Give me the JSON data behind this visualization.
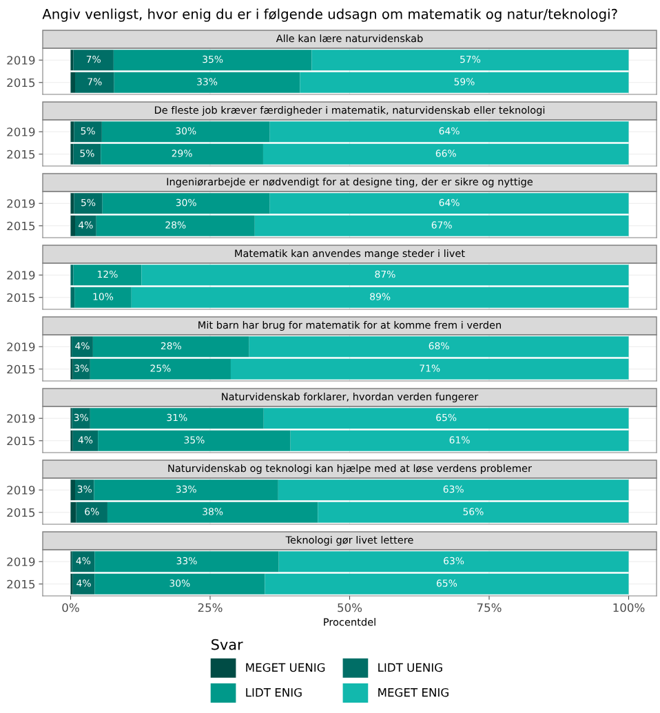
{
  "chart_data": [
    {
      "type": "bar",
      "orientation": "horizontal",
      "stacked": true,
      "title": "Angiv venligst, hvor enig du er i følgende udsagn om matematik og natur/teknologi?",
      "subtitle": "Alle kan lære naturvidenskab",
      "categories": [
        "2019",
        "2015"
      ],
      "xlim": [
        -5,
        105
      ],
      "xticks": [
        {
          "value": 0,
          "label": null
        },
        {
          "value": 25,
          "label": null
        },
        {
          "value": 50,
          "label": null
        },
        {
          "value": 75,
          "label": null
        },
        {
          "value": 100,
          "label": null
        }
      ],
      "grid": true,
      "tick_labels": "y",
      "series": [
        {
          "color": "#004c45",
          "values": [
            0.5,
            0.8
          ],
          "value_labels": [
            null,
            null
          ]
        },
        {
          "color": "#006e66",
          "values": [
            7.2,
            7.0
          ],
          "value_labels": [
            "7%",
            "7%"
          ]
        },
        {
          "color": "#00998a",
          "values": [
            35.5,
            33.3
          ],
          "value_labels": [
            "35%",
            "33%"
          ]
        },
        {
          "color": "#12b8ad",
          "values": [
            56.8,
            58.9
          ],
          "value_labels": [
            "57%",
            "59%"
          ]
        }
      ]
    },
    {
      "type": "bar",
      "orientation": "horizontal",
      "stacked": true,
      "subtitle": "De fleste job kræver færdigheder i matematik, naturvidenskab eller teknologi",
      "categories": [
        "2019",
        "2015"
      ],
      "xlim": [
        -5,
        105
      ],
      "xticks": [
        {
          "value": 0,
          "label": null
        },
        {
          "value": 25,
          "label": null
        },
        {
          "value": 50,
          "label": null
        },
        {
          "value": 75,
          "label": null
        },
        {
          "value": 100,
          "label": null
        }
      ],
      "grid": true,
      "tick_labels": "y",
      "series": [
        {
          "color": "#004c45",
          "values": [
            0.6,
            0.5
          ],
          "value_labels": [
            null,
            null
          ]
        },
        {
          "color": "#006e66",
          "values": [
            5.0,
            4.9
          ],
          "value_labels": [
            "5%",
            "5%"
          ]
        },
        {
          "color": "#00998a",
          "values": [
            30.1,
            29.1
          ],
          "value_labels": [
            "30%",
            "29%"
          ]
        },
        {
          "color": "#12b8ad",
          "values": [
            64.3,
            65.5
          ],
          "value_labels": [
            "64%",
            "66%"
          ]
        }
      ]
    },
    {
      "type": "bar",
      "orientation": "horizontal",
      "stacked": true,
      "subtitle": "Ingeniørarbejde er nødvendigt for at designe ting, der er sikre og nyttige",
      "categories": [
        "2019",
        "2015"
      ],
      "xlim": [
        -5,
        105
      ],
      "xticks": [
        {
          "value": 0,
          "label": null
        },
        {
          "value": 25,
          "label": null
        },
        {
          "value": 50,
          "label": null
        },
        {
          "value": 75,
          "label": null
        },
        {
          "value": 100,
          "label": null
        }
      ],
      "grid": true,
      "tick_labels": "y",
      "series": [
        {
          "color": "#004c45",
          "values": [
            0.6,
            0.8
          ],
          "value_labels": [
            null,
            null
          ]
        },
        {
          "color": "#006e66",
          "values": [
            5.1,
            3.8
          ],
          "value_labels": [
            "5%",
            "4%"
          ]
        },
        {
          "color": "#00998a",
          "values": [
            30.0,
            28.4
          ],
          "value_labels": [
            "30%",
            "28%"
          ]
        },
        {
          "color": "#12b8ad",
          "values": [
            64.3,
            67.0
          ],
          "value_labels": [
            "64%",
            "67%"
          ]
        }
      ]
    },
    {
      "type": "bar",
      "orientation": "horizontal",
      "stacked": true,
      "subtitle": "Matematik kan anvendes mange steder i livet",
      "categories": [
        "2019",
        "2015"
      ],
      "xlim": [
        -5,
        105
      ],
      "xticks": [
        {
          "value": 0,
          "label": null
        },
        {
          "value": 25,
          "label": null
        },
        {
          "value": 50,
          "label": null
        },
        {
          "value": 75,
          "label": null
        },
        {
          "value": 100,
          "label": null
        }
      ],
      "grid": true,
      "tick_labels": "y",
      "series": [
        {
          "color": "#004c45",
          "values": [
            0.0,
            0.0
          ],
          "value_labels": [
            null,
            null
          ]
        },
        {
          "color": "#006e66",
          "values": [
            0.5,
            0.7
          ],
          "value_labels": [
            null,
            null
          ]
        },
        {
          "color": "#00998a",
          "values": [
            12.2,
            10.2
          ],
          "value_labels": [
            "12%",
            "10%"
          ]
        },
        {
          "color": "#12b8ad",
          "values": [
            87.3,
            89.1
          ],
          "value_labels": [
            "87%",
            "89%"
          ]
        }
      ]
    },
    {
      "type": "bar",
      "orientation": "horizontal",
      "stacked": true,
      "subtitle": "Mit barn har brug for matematik for at komme frem i verden",
      "categories": [
        "2019",
        "2015"
      ],
      "xlim": [
        -5,
        105
      ],
      "xticks": [
        {
          "value": 0,
          "label": null
        },
        {
          "value": 25,
          "label": null
        },
        {
          "value": 50,
          "label": null
        },
        {
          "value": 75,
          "label": null
        },
        {
          "value": 100,
          "label": null
        }
      ],
      "grid": true,
      "tick_labels": "y",
      "series": [
        {
          "color": "#004c45",
          "values": [
            0.2,
            0.4
          ],
          "value_labels": [
            null,
            null
          ]
        },
        {
          "color": "#006e66",
          "values": [
            3.8,
            3.1
          ],
          "value_labels": [
            "4%",
            "3%"
          ]
        },
        {
          "color": "#00998a",
          "values": [
            28.0,
            25.2
          ],
          "value_labels": [
            "28%",
            "25%"
          ]
        },
        {
          "color": "#12b8ad",
          "values": [
            68.0,
            71.3
          ],
          "value_labels": [
            "68%",
            "71%"
          ]
        }
      ]
    },
    {
      "type": "bar",
      "orientation": "horizontal",
      "stacked": true,
      "subtitle": "Naturvidenskab forklarer, hvordan verden fungerer",
      "categories": [
        "2019",
        "2015"
      ],
      "xlim": [
        -5,
        105
      ],
      "xticks": [
        {
          "value": 0,
          "label": null
        },
        {
          "value": 25,
          "label": null
        },
        {
          "value": 50,
          "label": null
        },
        {
          "value": 75,
          "label": null
        },
        {
          "value": 100,
          "label": null
        }
      ],
      "grid": true,
      "tick_labels": "y",
      "series": [
        {
          "color": "#004c45",
          "values": [
            0.25,
            0.4
          ],
          "value_labels": [
            null,
            null
          ]
        },
        {
          "color": "#006e66",
          "values": [
            3.25,
            4.5
          ],
          "value_labels": [
            "3%",
            "4%"
          ]
        },
        {
          "color": "#00998a",
          "values": [
            31.1,
            34.5
          ],
          "value_labels": [
            "31%",
            "35%"
          ]
        },
        {
          "color": "#12b8ad",
          "values": [
            65.4,
            60.6
          ],
          "value_labels": [
            "65%",
            "61%"
          ]
        }
      ]
    },
    {
      "type": "bar",
      "orientation": "horizontal",
      "stacked": true,
      "subtitle": "Naturvidenskab og teknologi kan hjælpe med at løse verdens problemer",
      "categories": [
        "2019",
        "2015"
      ],
      "xlim": [
        -5,
        105
      ],
      "xticks": [
        {
          "value": 0,
          "label": null
        },
        {
          "value": 25,
          "label": null
        },
        {
          "value": 50,
          "label": null
        },
        {
          "value": 75,
          "label": null
        },
        {
          "value": 100,
          "label": null
        }
      ],
      "grid": true,
      "tick_labels": "y",
      "series": [
        {
          "color": "#004c45",
          "values": [
            0.8,
            1.0
          ],
          "value_labels": [
            null,
            null
          ]
        },
        {
          "color": "#006e66",
          "values": [
            3.4,
            5.6
          ],
          "value_labels": [
            "3%",
            "6%"
          ]
        },
        {
          "color": "#00998a",
          "values": [
            33.0,
            37.7
          ],
          "value_labels": [
            "33%",
            "38%"
          ]
        },
        {
          "color": "#12b8ad",
          "values": [
            62.8,
            55.7
          ],
          "value_labels": [
            "63%",
            "56%"
          ]
        }
      ]
    },
    {
      "type": "bar",
      "orientation": "horizontal",
      "stacked": true,
      "subtitle": "Teknologi gør livet lettere",
      "xlabel": "Procentdel",
      "categories": [
        "2019",
        "2015"
      ],
      "xlim": [
        -5,
        105
      ],
      "xticks": [
        {
          "value": 0,
          "label": "0%"
        },
        {
          "value": 25,
          "label": "25%"
        },
        {
          "value": 50,
          "label": "50%"
        },
        {
          "value": 75,
          "label": "75%"
        },
        {
          "value": 100,
          "label": "100%"
        }
      ],
      "grid": true,
      "legend": "bottom",
      "legend_title": "Svar",
      "series": [
        {
          "name": "MEGET UENIG",
          "color": "#004c45",
          "values": [
            0.25,
            0.4
          ],
          "value_labels": [
            null,
            null
          ]
        },
        {
          "name": "LIDT UENIG",
          "color": "#006e66",
          "values": [
            4.05,
            3.9
          ],
          "value_labels": [
            "4%",
            "4%"
          ]
        },
        {
          "name": "LIDT ENIG",
          "color": "#00998a",
          "values": [
            33.0,
            30.5
          ],
          "value_labels": [
            "33%",
            "30%"
          ]
        },
        {
          "name": "MEGET ENIG",
          "color": "#12b8ad",
          "values": [
            62.7,
            65.2
          ],
          "value_labels": [
            "63%",
            "65%"
          ]
        }
      ]
    }
  ]
}
